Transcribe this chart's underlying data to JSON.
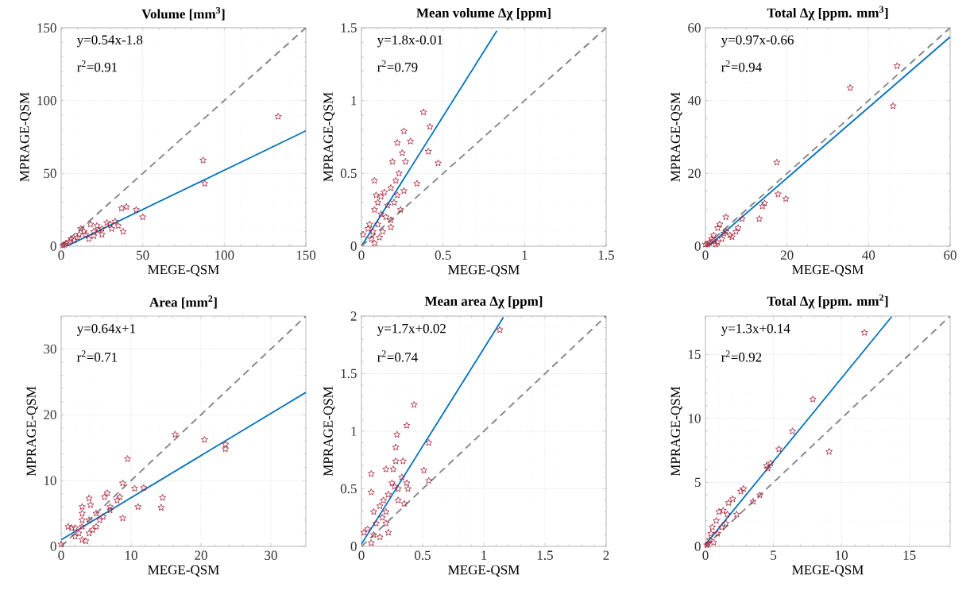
{
  "chart_data": [
    {
      "type": "scatter",
      "title": "Volume [mm$^{3}$]",
      "xlabel": "MEGE-QSM",
      "ylabel": "MPRAGE-QSM",
      "xlim": [
        0,
        150
      ],
      "ylim": [
        0,
        150
      ],
      "xticks": [
        0,
        50,
        100,
        150
      ],
      "yticks": [
        0,
        50,
        100,
        150
      ],
      "grid": true,
      "annotations": [
        "y=0.54x-1.8",
        "r$^{2}$=0.91"
      ],
      "series": [
        {
          "type": "scatter",
          "color": "#a2142f",
          "marker": "star",
          "x": [
            133,
            87,
            88,
            50,
            46,
            40,
            37,
            38,
            33,
            30,
            25,
            20,
            15,
            10,
            5,
            2,
            12,
            18,
            22,
            28,
            31,
            25,
            17,
            8,
            3,
            14,
            20,
            23,
            11,
            6,
            1,
            35
          ],
          "values": [
            89,
            59,
            43,
            20,
            25,
            27,
            26,
            10,
            17,
            15,
            12,
            10,
            8,
            6,
            3,
            1,
            12,
            15,
            14,
            16,
            12,
            8,
            5,
            4,
            2,
            10,
            7,
            11,
            8,
            5,
            0.5,
            14
          ]
        },
        {
          "type": "line",
          "color": "#0072bd",
          "x": [
            3.3,
            150
          ],
          "values": [
            0,
            79.2
          ]
        },
        {
          "type": "line",
          "color": "#808080",
          "line_style": "dashed",
          "x": [
            0,
            150
          ],
          "values": [
            0,
            150
          ]
        }
      ]
    },
    {
      "type": "scatter",
      "title": "Mean volume Δχ [ppm]",
      "xlabel": "MEGE-QSM",
      "ylabel": "MPRAGE-QSM",
      "xlim": [
        0,
        1.5
      ],
      "ylim": [
        0,
        1.5
      ],
      "xticks": [
        0,
        0.5,
        1,
        1.5
      ],
      "yticks": [
        0,
        0.5,
        1,
        1.5
      ],
      "grid": true,
      "annotations": [
        "y=1.8x-0.01",
        "r$^{2}$=0.79"
      ],
      "series": [
        {
          "type": "scatter",
          "color": "#a2142f",
          "marker": "star",
          "x": [
            0.38,
            0.42,
            0.41,
            0.47,
            0.34,
            0.26,
            0.3,
            0.22,
            0.25,
            0.27,
            0.19,
            0.08,
            0.23,
            0.21,
            0.26,
            0.18,
            0.14,
            0.09,
            0.12,
            0.2,
            0.24,
            0.1,
            0.08,
            0.15,
            0.18,
            0.12,
            0.05,
            0.1,
            0.18,
            0.07,
            0.01,
            0.11,
            0.06,
            0.08,
            0.13,
            0.16,
            0.22,
            0.04
          ],
          "values": [
            0.92,
            0.82,
            0.65,
            0.57,
            0.43,
            0.79,
            0.72,
            0.71,
            0.64,
            0.58,
            0.58,
            0.45,
            0.5,
            0.45,
            0.38,
            0.4,
            0.37,
            0.35,
            0.34,
            0.3,
            0.25,
            0.3,
            0.25,
            0.2,
            0.18,
            0.22,
            0.15,
            0.15,
            0.13,
            0.1,
            0.08,
            0.06,
            0.05,
            0.02,
            0.1,
            0.28,
            0.35,
            0.12
          ]
        },
        {
          "type": "line",
          "color": "#0072bd",
          "x": [
            0,
            0.83
          ],
          "values": [
            0,
            1.48
          ]
        },
        {
          "type": "line",
          "color": "#808080",
          "line_style": "dashed",
          "x": [
            0,
            1.5
          ],
          "values": [
            0,
            1.5
          ]
        }
      ]
    },
    {
      "type": "scatter",
      "title": "Total Δχ [ppm. mm$^{3}$]",
      "xlabel": "MEGE-QSM",
      "ylabel": "MPRAGE-QSM",
      "xlim": [
        0,
        60
      ],
      "ylim": [
        0,
        60
      ],
      "xticks": [
        0,
        20,
        40,
        60
      ],
      "yticks": [
        0,
        20,
        40,
        60
      ],
      "grid": true,
      "annotations": [
        "y=0.97x-0.66",
        "r$^{2}$=0.94"
      ],
      "series": [
        {
          "type": "scatter",
          "color": "#a2142f",
          "marker": "star",
          "x": [
            47,
            35.5,
            46,
            17.5,
            17.8,
            19.7,
            14.5,
            14,
            13.2,
            9,
            8,
            7.5,
            5,
            3.5,
            3,
            6,
            4,
            2,
            1,
            0.5,
            2,
            5,
            6.5,
            3,
            1.5,
            4.5,
            0,
            2.5
          ],
          "values": [
            49.5,
            43.5,
            38.5,
            23,
            14.3,
            13,
            11.8,
            11,
            7.5,
            7.5,
            5,
            4,
            8,
            6,
            5,
            3,
            2,
            3,
            1,
            0.5,
            1.5,
            4,
            2.5,
            1,
            2,
            3.5,
            0.5,
            0.5
          ]
        },
        {
          "type": "line",
          "color": "#0072bd",
          "x": [
            0.7,
            60
          ],
          "values": [
            0,
            57.5
          ]
        },
        {
          "type": "line",
          "color": "#808080",
          "line_style": "dashed",
          "x": [
            0,
            60
          ],
          "values": [
            0,
            60
          ]
        }
      ]
    },
    {
      "type": "scatter",
      "title": "Area [mm$^{2}$]",
      "xlabel": "MEGE-QSM",
      "ylabel": "MPRAGE-QSM",
      "xlim": [
        0,
        35
      ],
      "ylim": [
        0,
        35
      ],
      "xticks": [
        0,
        10,
        20,
        30
      ],
      "yticks": [
        0,
        10,
        20,
        30
      ],
      "grid": true,
      "annotations": [
        "y=0.64x+1",
        "r$^{2}$=0.71"
      ],
      "series": [
        {
          "type": "scatter",
          "color": "#a2142f",
          "marker": "star",
          "x": [
            16.3,
            20.5,
            23.5,
            23.5,
            9.5,
            8.8,
            10.5,
            11.8,
            14.5,
            14.3,
            11,
            8.8,
            6.6,
            8.4,
            6.2,
            8,
            7,
            6,
            5,
            4,
            4.2,
            3,
            3,
            3,
            3,
            4,
            3,
            3.5,
            2.5,
            1,
            1.5,
            2,
            0,
            5,
            4,
            5.5,
            4.5,
            7,
            2
          ],
          "values": [
            17,
            16.2,
            15.5,
            14.8,
            13.3,
            9.6,
            8.8,
            8.9,
            7.4,
            5.9,
            6,
            4.3,
            8.1,
            7.5,
            7.5,
            7,
            6,
            4.5,
            5,
            7.3,
            6.3,
            6,
            5,
            4,
            3,
            2,
            1,
            0.8,
            2,
            3,
            2.8,
            2.8,
            0.3,
            3,
            4,
            4,
            2.5,
            5.5,
            1.5
          ]
        },
        {
          "type": "line",
          "color": "#0072bd",
          "x": [
            0,
            35
          ],
          "values": [
            1,
            23.4
          ]
        },
        {
          "type": "line",
          "color": "#808080",
          "line_style": "dashed",
          "x": [
            0,
            35
          ],
          "values": [
            0,
            35
          ]
        }
      ]
    },
    {
      "type": "scatter",
      "title": "Mean area Δχ [ppm]",
      "xlabel": "MEGE-QSM",
      "ylabel": "MPRAGE-QSM",
      "xlim": [
        0,
        2
      ],
      "ylim": [
        0,
        2
      ],
      "xticks": [
        0,
        0.5,
        1,
        1.5,
        2
      ],
      "yticks": [
        0,
        0.5,
        1,
        1.5,
        2
      ],
      "grid": true,
      "annotations": [
        "y=1.7x+0.02",
        "r$^{2}$=0.74"
      ],
      "series": [
        {
          "type": "scatter",
          "color": "#a2142f",
          "marker": "star",
          "x": [
            1.13,
            0.43,
            0.37,
            0.29,
            0.28,
            0.55,
            0.51,
            0.55,
            0.08,
            0.28,
            0.34,
            0.2,
            0.26,
            0.33,
            0.37,
            0.38,
            0.08,
            0.3,
            0.25,
            0.3,
            0.35,
            0.22,
            0.18,
            0.15,
            0.1,
            0.2,
            0.12,
            0.17,
            0.22,
            0.02,
            0.05,
            0.1,
            0.08,
            0.15,
            0.2,
            0.27
          ],
          "values": [
            1.88,
            1.23,
            1.05,
            0.97,
            0.86,
            0.9,
            0.66,
            0.57,
            0.63,
            0.74,
            0.74,
            0.67,
            0.67,
            0.6,
            0.55,
            0.5,
            0.47,
            0.5,
            0.55,
            0.4,
            0.37,
            0.45,
            0.4,
            0.35,
            0.3,
            0.3,
            0.2,
            0.25,
            0.12,
            0.12,
            0.15,
            0.1,
            0.03,
            0.08,
            0.2,
            0.52
          ]
        },
        {
          "type": "line",
          "color": "#0072bd",
          "x": [
            0,
            1.16
          ],
          "values": [
            0.02,
            1.99
          ]
        },
        {
          "type": "line",
          "color": "#808080",
          "line_style": "dashed",
          "x": [
            0,
            2
          ],
          "values": [
            0,
            2
          ]
        }
      ]
    },
    {
      "type": "scatter",
      "title": "Total Δχ [ppm. mm$^{2}$]",
      "xlabel": "MEGE-QSM",
      "ylabel": "MPRAGE-QSM",
      "xlim": [
        0,
        18
      ],
      "ylim": [
        0,
        18
      ],
      "xticks": [
        0,
        5,
        10,
        15
      ],
      "yticks": [
        0,
        5,
        10,
        15
      ],
      "grid": true,
      "annotations": [
        "y=1.3x+0.14",
        "r$^{2}$=0.92"
      ],
      "series": [
        {
          "type": "scatter",
          "color": "#a2142f",
          "marker": "star",
          "x": [
            11.7,
            7.9,
            6.4,
            9.1,
            5.4,
            4.8,
            4.6,
            4.5,
            4.0,
            3.5,
            2.8,
            2.6,
            2.0,
            1.7,
            1.6,
            2.3,
            1.0,
            1.3,
            0.8,
            1.2,
            0.5,
            0.9,
            0.3,
            0.6,
            0.2,
            1.5,
            0.4,
            0.1
          ],
          "values": [
            16.7,
            11.5,
            9.0,
            7.4,
            7.6,
            6.5,
            6.1,
            6.3,
            4.0,
            3.5,
            4.5,
            4.3,
            3.7,
            3.4,
            2.5,
            2.5,
            2.7,
            2.8,
            2.0,
            1.5,
            1.5,
            1.0,
            0.5,
            0.3,
            0.2,
            1.8,
            1.0,
            0.1
          ]
        },
        {
          "type": "line",
          "color": "#0072bd",
          "x": [
            0,
            13.7
          ],
          "values": [
            0.14,
            17.95
          ]
        },
        {
          "type": "line",
          "color": "#808080",
          "line_style": "dashed",
          "x": [
            0,
            18
          ],
          "values": [
            0,
            18
          ]
        }
      ]
    }
  ]
}
